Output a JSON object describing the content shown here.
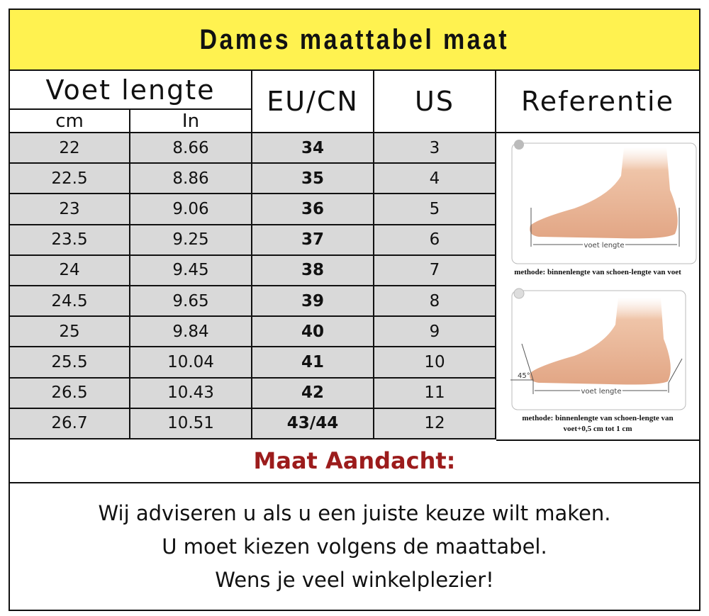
{
  "title": "Dames maattabel maat",
  "headers": {
    "foot_length": "Voet lengte",
    "cm": "cm",
    "in": "In",
    "eu_cn": "EU/CN",
    "us": "US",
    "reference": "Referentie"
  },
  "rows": [
    {
      "cm": "22",
      "in": "8.66",
      "eu": "34",
      "us": "3"
    },
    {
      "cm": "22.5",
      "in": "8.86",
      "eu": "35",
      "us": "4"
    },
    {
      "cm": "23",
      "in": "9.06",
      "eu": "36",
      "us": "5"
    },
    {
      "cm": "23.5",
      "in": "9.25",
      "eu": "37",
      "us": "6"
    },
    {
      "cm": "24",
      "in": "9.45",
      "eu": "38",
      "us": "7"
    },
    {
      "cm": "24.5",
      "in": "9.65",
      "eu": "39",
      "us": "8"
    },
    {
      "cm": "25",
      "in": "9.84",
      "eu": "40",
      "us": "9"
    },
    {
      "cm": "25.5",
      "in": "10.04",
      "eu": "41",
      "us": "10"
    },
    {
      "cm": "26.5",
      "in": "10.43",
      "eu": "42",
      "us": "11"
    },
    {
      "cm": "26.7",
      "in": "10.51",
      "eu": "43/44",
      "us": "12"
    }
  ],
  "reference": {
    "step1_label": "voet lengte",
    "step1_caption": "methode: binnenlengte van schoen-lengte van voet",
    "step2_label": "voet lengte",
    "step2_angle": "45°",
    "step2_caption_line1": "methode: binnenlengte van schoen-lengte van",
    "step2_caption_line2": "voet+0,5 cm tot 1 cm"
  },
  "attention": "Maat Aandacht:",
  "message": [
    "Wij adviseren u als u een juiste keuze wilt maken.",
    "U moet kiezen volgens de maattabel.",
    "Wens je veel winkelplezier!"
  ],
  "colors": {
    "title_bg": "#fff250",
    "row_bg": "#d9d9d9",
    "attention": "#9c1c1c"
  }
}
